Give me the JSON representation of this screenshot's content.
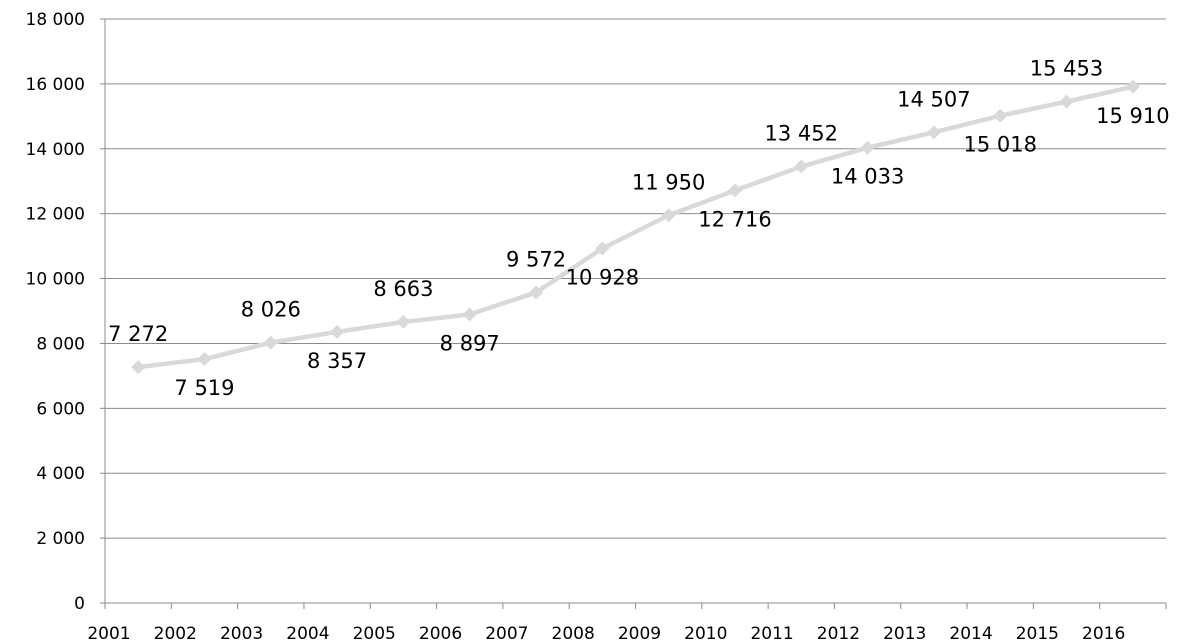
{
  "chart_data": {
    "type": "line",
    "categories": [
      "2001",
      "2002",
      "2003",
      "2004",
      "2005",
      "2006",
      "2007",
      "2008",
      "2009",
      "2010",
      "2011",
      "2012",
      "2013",
      "2014",
      "2015",
      "2016"
    ],
    "series": [
      {
        "values": [
          7272,
          7519,
          8026,
          8357,
          8663,
          8897,
          9572,
          10928,
          11950,
          12716,
          13452,
          14033,
          14507,
          15018,
          15453,
          15910
        ],
        "value_labels": [
          "7 272",
          "7 519",
          "8 026",
          "8 357",
          "8 663",
          "8 897",
          "9 572",
          "10 928",
          "11 950",
          "12 716",
          "13 452",
          "14 033",
          "14 507",
          "15 018",
          "15 453",
          "15 910"
        ],
        "label_positions": [
          "above",
          "below",
          "above",
          "below",
          "above",
          "below",
          "above",
          "below",
          "above",
          "below",
          "above",
          "below",
          "above",
          "below",
          "above",
          "below"
        ],
        "color": "#d9d9d9",
        "marker": "diamond"
      }
    ],
    "ylim": [
      0,
      18000
    ],
    "yticks": [
      0,
      2000,
      4000,
      6000,
      8000,
      10000,
      12000,
      14000,
      16000,
      18000
    ],
    "ytick_labels": [
      "0",
      "2 000",
      "4 000",
      "6 000",
      "8 000",
      "10 000",
      "12 000",
      "14 000",
      "16 000",
      "18 000"
    ],
    "grid": true,
    "gridline_color": "#8c8c8c",
    "title": "",
    "xlabel": "",
    "ylabel": "",
    "legend": "none"
  }
}
